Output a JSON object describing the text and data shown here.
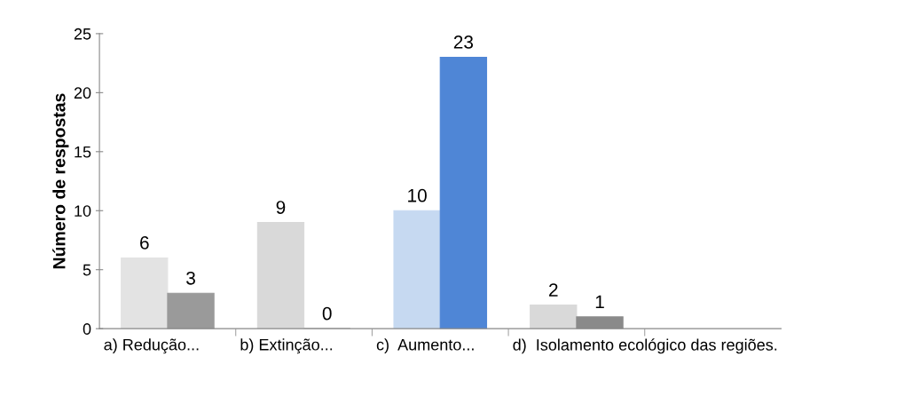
{
  "chart_data": {
    "type": "bar",
    "ylabel": "Número de respostas",
    "categories": [
      "a) Redução...",
      "b) Extinção...",
      "c)  Aumento...",
      "d)  Isolamento ecológico das regiões.",
      null
    ],
    "series": [
      {
        "colors": [
          "#e3e3e3",
          "#d9d9d9",
          "#c6d9f1",
          "#d9d9d9",
          "#d9d9d9"
        ],
        "values": [
          6,
          9,
          10,
          2,
          null
        ]
      },
      {
        "colors": [
          "#9a9a9a",
          "#9a9a9a",
          "#4f86d6",
          "#8a8a8a",
          "#8a8a8a"
        ],
        "values": [
          3,
          0,
          23,
          1,
          null
        ]
      }
    ],
    "ylim": [
      0,
      25
    ],
    "yticks": [
      0,
      5,
      10,
      15,
      20,
      25
    ],
    "data_labels": true,
    "grid": false,
    "legend": false
  }
}
